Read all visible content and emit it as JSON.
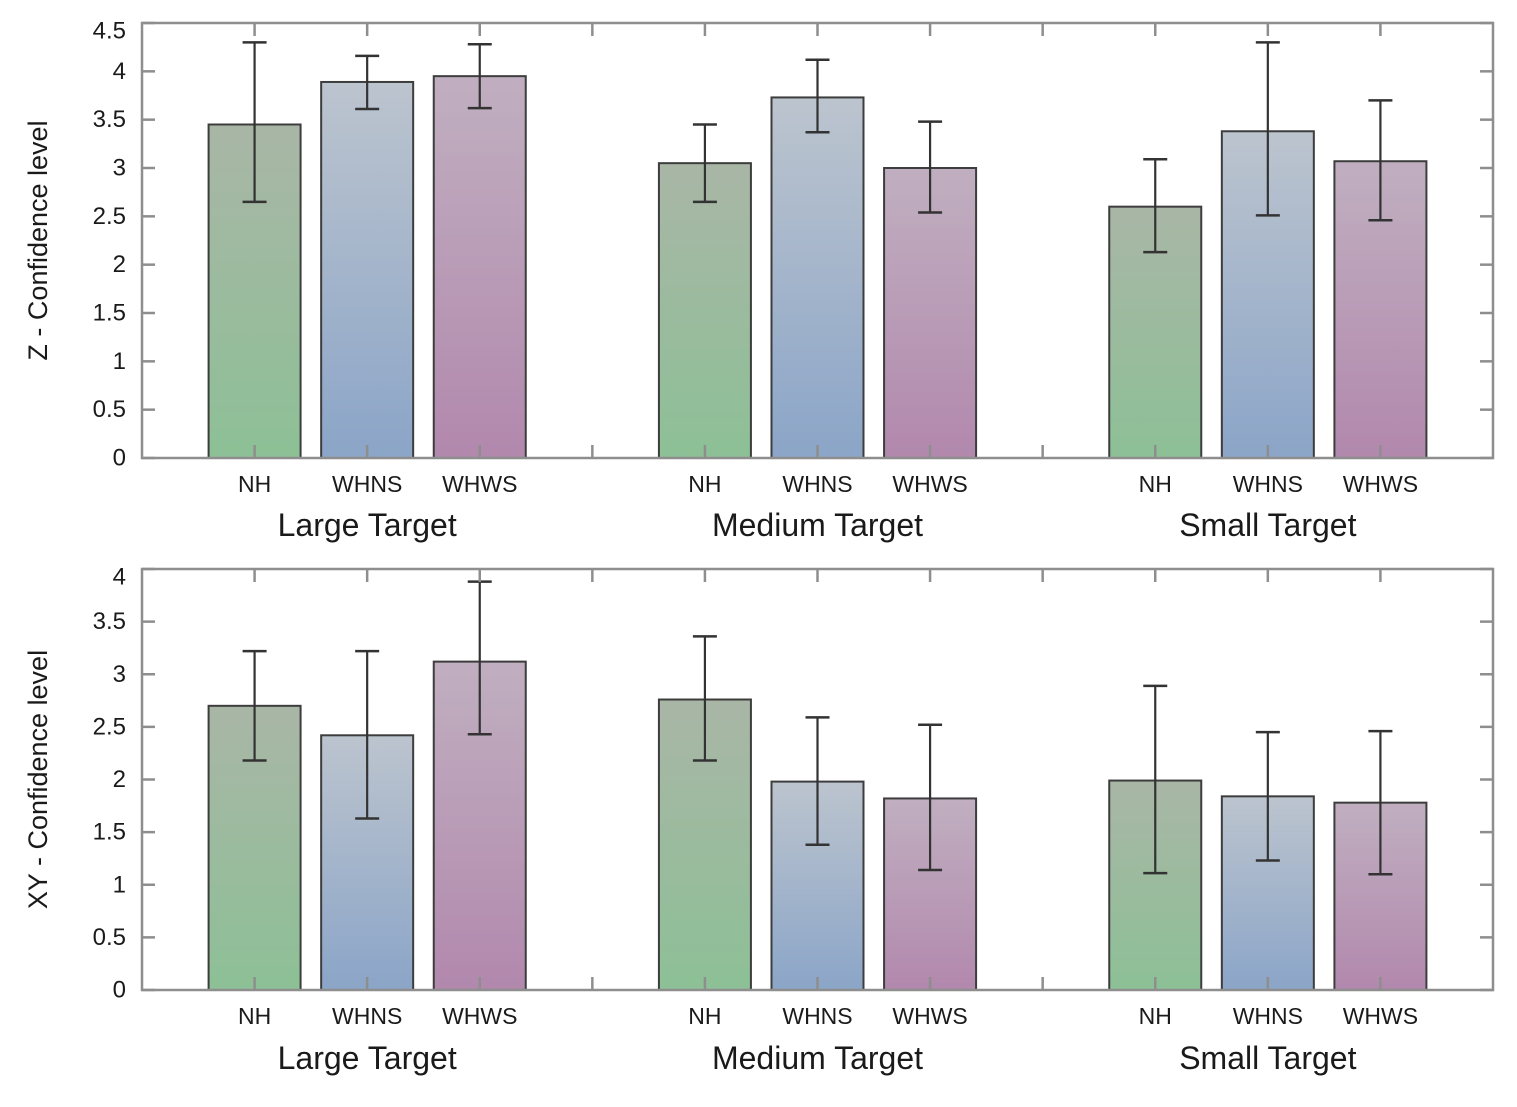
{
  "figure": {
    "kind": "grouped-bar-charts-with-error-bars",
    "background": "#ffffff",
    "panel_count": 2
  },
  "style": {
    "axis_color": "#8e8e8e",
    "text_color": "#1a1a1a",
    "bar_outline_color": "#3d3d3d",
    "error_bar_color": "#333333",
    "series_colors": {
      "NH": {
        "top": "#a9b6a6",
        "bottom": "#8dc096"
      },
      "WHNS": {
        "top": "#bcc4ce",
        "bottom": "#8ba5c8"
      },
      "WHWS": {
        "top": "#c0afc0",
        "bottom": "#b288ad"
      }
    }
  },
  "chart_data": [
    {
      "type": "bar",
      "title": "",
      "xlabel": "",
      "ylabel": "Z - Confidence level",
      "ylim": [
        0,
        4.5
      ],
      "ytick_step": 0.5,
      "yticks": [
        0,
        0.5,
        1,
        1.5,
        2,
        2.5,
        3,
        3.5,
        4,
        4.5
      ],
      "grid": false,
      "legend": "none",
      "error_bars": true,
      "categories": [
        "NH",
        "WHNS",
        "WHWS"
      ],
      "groups": [
        {
          "label": "Large Target",
          "bars": [
            {
              "category": "NH",
              "value": 3.45,
              "err_low": 2.65,
              "err_high": 4.3
            },
            {
              "category": "WHNS",
              "value": 3.89,
              "err_low": 3.61,
              "err_high": 4.16
            },
            {
              "category": "WHWS",
              "value": 3.95,
              "err_low": 3.62,
              "err_high": 4.28
            }
          ]
        },
        {
          "label": "Medium Target",
          "bars": [
            {
              "category": "NH",
              "value": 3.05,
              "err_low": 2.65,
              "err_high": 3.45
            },
            {
              "category": "WHNS",
              "value": 3.73,
              "err_low": 3.37,
              "err_high": 4.12
            },
            {
              "category": "WHWS",
              "value": 3.0,
              "err_low": 2.54,
              "err_high": 3.48
            }
          ]
        },
        {
          "label": "Small Target",
          "bars": [
            {
              "category": "NH",
              "value": 2.6,
              "err_low": 2.13,
              "err_high": 3.09
            },
            {
              "category": "WHNS",
              "value": 3.38,
              "err_low": 2.51,
              "err_high": 4.3
            },
            {
              "category": "WHWS",
              "value": 3.07,
              "err_low": 2.46,
              "err_high": 3.7
            }
          ]
        }
      ]
    },
    {
      "type": "bar",
      "title": "",
      "xlabel": "",
      "ylabel": "XY - Confidence level",
      "ylim": [
        0,
        4
      ],
      "ytick_step": 0.5,
      "yticks": [
        0,
        0.5,
        1,
        1.5,
        2,
        2.5,
        3,
        3.5,
        4
      ],
      "grid": false,
      "legend": "none",
      "error_bars": true,
      "categories": [
        "NH",
        "WHNS",
        "WHWS"
      ],
      "groups": [
        {
          "label": "Large Target",
          "bars": [
            {
              "category": "NH",
              "value": 2.7,
              "err_low": 2.18,
              "err_high": 3.22
            },
            {
              "category": "WHNS",
              "value": 2.42,
              "err_low": 1.63,
              "err_high": 3.22
            },
            {
              "category": "WHWS",
              "value": 3.12,
              "err_low": 2.43,
              "err_high": 3.88
            }
          ]
        },
        {
          "label": "Medium Target",
          "bars": [
            {
              "category": "NH",
              "value": 2.76,
              "err_low": 2.18,
              "err_high": 3.36
            },
            {
              "category": "WHNS",
              "value": 1.98,
              "err_low": 1.38,
              "err_high": 2.59
            },
            {
              "category": "WHWS",
              "value": 1.82,
              "err_low": 1.14,
              "err_high": 2.52
            }
          ]
        },
        {
          "label": "Small Target",
          "bars": [
            {
              "category": "NH",
              "value": 1.99,
              "err_low": 1.11,
              "err_high": 2.89
            },
            {
              "category": "WHNS",
              "value": 1.84,
              "err_low": 1.23,
              "err_high": 2.45
            },
            {
              "category": "WHWS",
              "value": 1.78,
              "err_low": 1.1,
              "err_high": 2.46
            }
          ]
        }
      ]
    }
  ]
}
